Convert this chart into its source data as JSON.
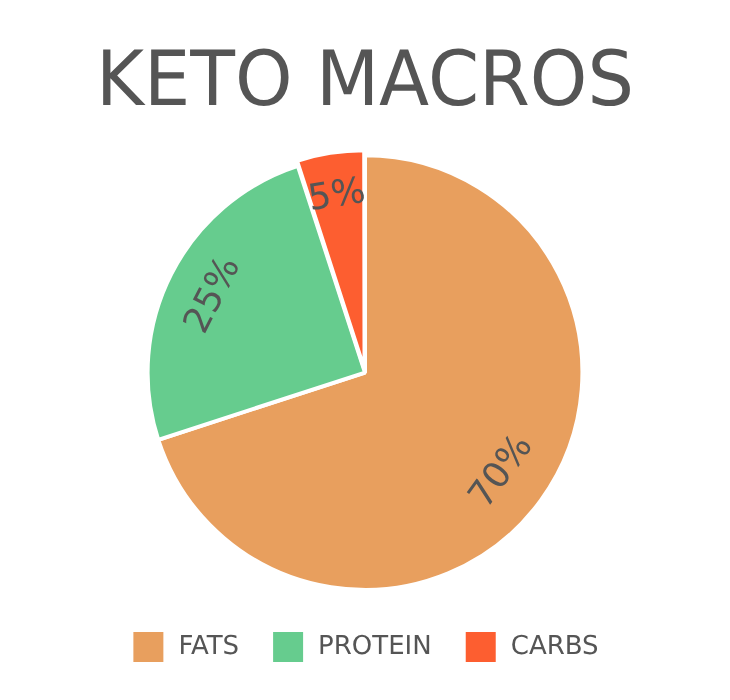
{
  "chart_data": {
    "type": "pie",
    "title": "KETO MACROS",
    "categories": [
      "FATS",
      "PROTEIN",
      "CARBS"
    ],
    "values": [
      70,
      25,
      5
    ],
    "colors": [
      "#e89f5e",
      "#66cc8e",
      "#fd5e30"
    ],
    "value_labels": [
      "70%",
      "25%",
      "5%"
    ],
    "legend": "bottom"
  }
}
